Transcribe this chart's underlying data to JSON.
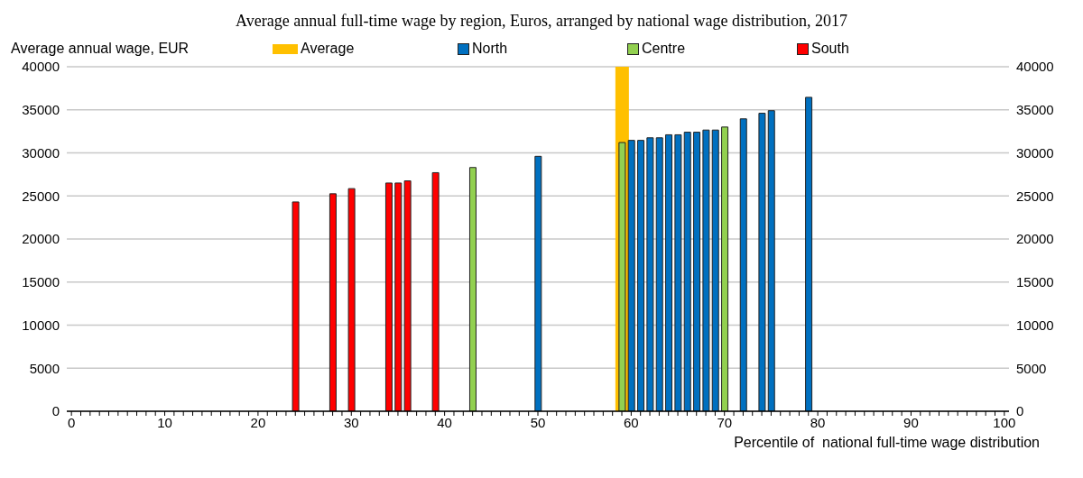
{
  "chart_data": {
    "type": "bar",
    "title": "Average annual full-time wage by region, Euros, arranged by national wage distribution, 2017",
    "ylabel": "Average annual wage, EUR",
    "xlabel": "Percentile of  national full-time wage distribution",
    "categories": [
      "0",
      null,
      null,
      null,
      null,
      null,
      null,
      null,
      null,
      null,
      "10",
      null,
      null,
      null,
      null,
      null,
      null,
      null,
      null,
      null,
      "20",
      null,
      null,
      null,
      null,
      null,
      null,
      null,
      null,
      null,
      "30",
      null,
      null,
      null,
      null,
      null,
      null,
      null,
      null,
      null,
      "40",
      null,
      null,
      null,
      null,
      null,
      null,
      null,
      null,
      null,
      "50",
      null,
      null,
      null,
      null,
      null,
      null,
      null,
      null,
      null,
      "60",
      null,
      null,
      null,
      null,
      null,
      null,
      null,
      null,
      null,
      "70",
      null,
      null,
      null,
      null,
      null,
      null,
      null,
      null,
      null,
      "80",
      null,
      null,
      null,
      null,
      null,
      null,
      null,
      null,
      null,
      "90",
      null,
      null,
      null,
      null,
      null,
      null,
      null,
      null,
      null,
      "100"
    ],
    "series": [
      {
        "name": "Average",
        "color": "#ffc000",
        "values": [
          null,
          null,
          null,
          null,
          null,
          null,
          null,
          null,
          null,
          null,
          null,
          null,
          null,
          null,
          null,
          null,
          null,
          null,
          null,
          null,
          null,
          null,
          null,
          null,
          null,
          null,
          null,
          null,
          null,
          null,
          null,
          null,
          null,
          null,
          null,
          null,
          null,
          null,
          null,
          null,
          null,
          null,
          null,
          null,
          null,
          null,
          null,
          null,
          null,
          null,
          null,
          null,
          null,
          null,
          null,
          null,
          null,
          null,
          null,
          40000,
          null,
          null,
          null,
          null,
          null,
          null,
          null,
          null,
          null,
          null,
          null,
          null,
          null,
          null,
          null,
          null,
          null,
          null,
          null,
          null,
          null,
          null,
          null,
          null,
          null,
          null,
          null,
          null,
          null,
          null,
          null,
          null,
          null,
          null,
          null,
          null,
          null,
          null,
          null,
          null,
          null
        ]
      },
      {
        "name": "North",
        "color": "#0070c0",
        "values": [
          null,
          null,
          null,
          null,
          null,
          null,
          null,
          null,
          null,
          null,
          null,
          null,
          null,
          null,
          null,
          null,
          null,
          null,
          null,
          null,
          null,
          null,
          null,
          null,
          null,
          null,
          null,
          null,
          null,
          null,
          null,
          null,
          null,
          null,
          null,
          null,
          null,
          null,
          null,
          null,
          null,
          null,
          null,
          null,
          null,
          null,
          null,
          null,
          null,
          null,
          29600,
          null,
          null,
          null,
          null,
          null,
          null,
          null,
          null,
          null,
          31450,
          31450,
          31750,
          31750,
          32100,
          32100,
          32400,
          32400,
          32650,
          32650,
          null,
          null,
          33950,
          null,
          34600,
          34900,
          null,
          null,
          null,
          36450,
          null,
          null,
          null,
          null,
          null,
          null,
          null,
          null,
          null,
          null,
          null,
          null,
          null,
          null,
          null,
          null,
          null,
          null,
          null,
          null,
          null
        ]
      },
      {
        "name": "Centre",
        "color": "#92d050",
        "values": [
          null,
          null,
          null,
          null,
          null,
          null,
          null,
          null,
          null,
          null,
          null,
          null,
          null,
          null,
          null,
          null,
          null,
          null,
          null,
          null,
          null,
          null,
          null,
          null,
          null,
          null,
          null,
          null,
          null,
          null,
          null,
          null,
          null,
          null,
          null,
          null,
          null,
          null,
          null,
          null,
          null,
          null,
          null,
          28300,
          null,
          null,
          null,
          null,
          null,
          null,
          null,
          null,
          null,
          null,
          null,
          null,
          null,
          null,
          null,
          31200,
          null,
          null,
          null,
          null,
          null,
          null,
          null,
          null,
          null,
          null,
          33000,
          null,
          null,
          null,
          null,
          null,
          null,
          null,
          null,
          null,
          null,
          null,
          null,
          null,
          null,
          null,
          null,
          null,
          null,
          null,
          null,
          null,
          null,
          null,
          null,
          null,
          null,
          null,
          null,
          null,
          null
        ]
      },
      {
        "name": "South",
        "color": "#ff0000",
        "values": [
          null,
          null,
          null,
          null,
          null,
          null,
          null,
          null,
          null,
          null,
          null,
          null,
          null,
          null,
          null,
          null,
          null,
          null,
          null,
          null,
          null,
          null,
          null,
          null,
          24300,
          null,
          null,
          null,
          25250,
          null,
          25850,
          null,
          null,
          null,
          26500,
          26500,
          26750,
          null,
          null,
          27700,
          null,
          null,
          null,
          null,
          null,
          null,
          null,
          null,
          null,
          null,
          null,
          null,
          null,
          null,
          null,
          null,
          null,
          null,
          null,
          null,
          null,
          null,
          null,
          null,
          null,
          null,
          null,
          null,
          null,
          null,
          null,
          null,
          null,
          null,
          null,
          null,
          null,
          null,
          null,
          null,
          null,
          null,
          null,
          null,
          null,
          null,
          null,
          null,
          null,
          null,
          null,
          null,
          null,
          null,
          null,
          null,
          null,
          null,
          null,
          null,
          null
        ]
      }
    ],
    "ylim": [
      0,
      40000
    ],
    "yticks": [
      0,
      5000,
      10000,
      15000,
      20000,
      25000,
      30000,
      35000,
      40000
    ],
    "y2lim": [
      0,
      40000
    ],
    "y2ticks": [
      0,
      5000,
      10000,
      15000,
      20000,
      25000,
      30000,
      35000,
      40000
    ],
    "grid": "y",
    "legend": "top"
  }
}
